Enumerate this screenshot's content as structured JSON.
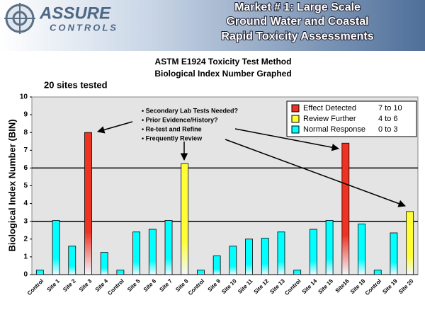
{
  "header": {
    "logo": [
      "ASSURE",
      "CONTROLS"
    ],
    "title": [
      "Market # 1: Large Scale",
      "Ground Water and Coastal",
      "Rapid Toxicity Assessments"
    ]
  },
  "chart_data": {
    "type": "bar",
    "title": [
      "ASTM E1924 Toxicity Test Method",
      "Biological Index Number Graphed"
    ],
    "subtitle": "20 sites tested",
    "y_label": "Biological Index Number (BIN)",
    "categories": [
      "Control",
      "Site 1",
      "Site 2",
      "Site 3",
      "Site 4",
      "Control",
      "Site 5",
      "Site 6",
      "Site 7",
      "Site 8",
      "Control",
      "Site 9",
      "Site 10",
      "Site 11",
      "Site 12",
      "Site 13",
      "Control",
      "Site 14",
      "Site 15",
      "Site16",
      "Site 18",
      "Control",
      "Site 19",
      "Site 20"
    ],
    "values": [
      0.25,
      3.05,
      1.6,
      8.0,
      1.25,
      0.25,
      2.4,
      2.55,
      3.05,
      6.25,
      0.25,
      1.05,
      1.6,
      2.0,
      2.05,
      2.4,
      0.25,
      2.55,
      3.05,
      7.4,
      2.85,
      0.25,
      2.35,
      3.55
    ],
    "colors": [
      "#00ffff",
      "#00ffff",
      "#00ffff",
      "#ee3322",
      "#00ffff",
      "#00ffff",
      "#00ffff",
      "#00ffff",
      "#00ffff",
      "#ffff33",
      "#00ffff",
      "#00ffff",
      "#00ffff",
      "#00ffff",
      "#00ffff",
      "#00ffff",
      "#00ffff",
      "#00ffff",
      "#00ffff",
      "#ee3322",
      "#00ffff",
      "#00ffff",
      "#00ffff",
      "#ffff33"
    ],
    "legend": [
      {
        "name": "Effect Detected",
        "range": "7 to 10",
        "color": "#ee3322"
      },
      {
        "name": "Review Further",
        "range": "4 to 6",
        "color": "#ffff33"
      },
      {
        "name": "Normal Response",
        "range": "0 to 3",
        "color": "#00ffff"
      }
    ],
    "reference_lines": [
      3,
      6
    ],
    "ylim": [
      0,
      10
    ],
    "yticks": [
      0,
      1,
      2,
      3,
      4,
      5,
      6,
      7,
      8,
      9,
      10
    ],
    "annotations": [
      "• Secondary Lab Tests Needed?",
      "• Prior Evidence/History?",
      "• Re-test and Refine",
      "• Frequently Review"
    ]
  }
}
